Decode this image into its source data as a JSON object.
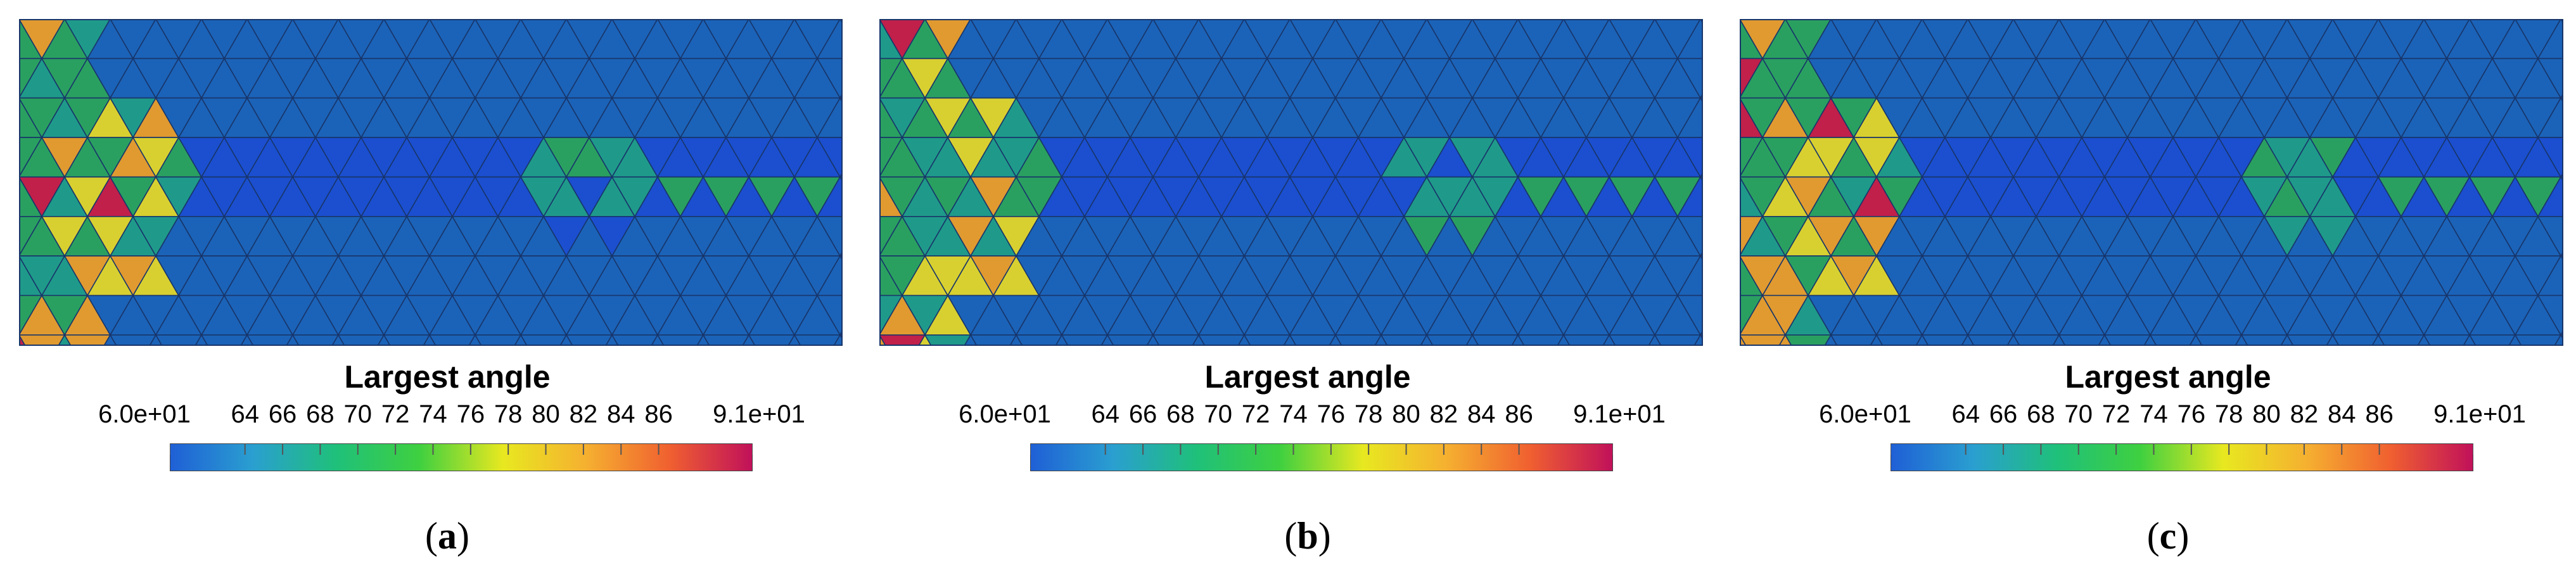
{
  "colorbar": {
    "title": "Largest angle",
    "tick_labels": [
      "6.0e+01",
      "64",
      "66",
      "68",
      "70",
      "72",
      "74",
      "76",
      "78",
      "80",
      "82",
      "84",
      "86",
      "9.1e+01"
    ],
    "tick_values": [
      60,
      64,
      66,
      68,
      70,
      72,
      74,
      76,
      78,
      80,
      82,
      84,
      86,
      91
    ],
    "range": [
      60,
      91
    ],
    "colors": [
      "#1f5fd6",
      "#2a9fd0",
      "#1fc07a",
      "#3fd040",
      "#e8e820",
      "#f5b030",
      "#f06030",
      "#c0105a"
    ]
  },
  "mesh_colors": {
    "base": "#1b63b8",
    "dark_band": "#1b4fd0",
    "teal": "#1f9a8a",
    "green": "#2aa060",
    "yellow": "#d8d030",
    "orange": "#e09a30",
    "red": "#c0204a",
    "edge": "#18356a"
  },
  "panels": [
    {
      "label_open": "(",
      "label_letter": "a",
      "label_close": ")"
    },
    {
      "label_open": "(",
      "label_letter": "b",
      "label_close": ")"
    },
    {
      "label_open": "(",
      "label_letter": "c",
      "label_close": ")"
    }
  ]
}
